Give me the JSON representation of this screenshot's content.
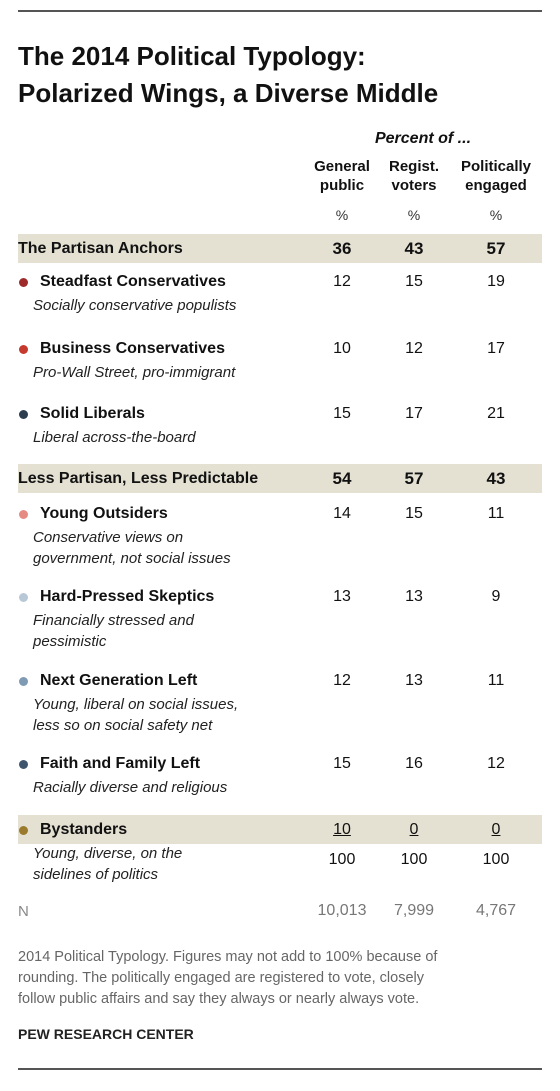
{
  "title_line1": "The 2014 Political Typology:",
  "title_line2": "Polarized Wings, a Diverse Middle",
  "header": {
    "percent_of": "Percent of ...",
    "columns": [
      {
        "line1": "General",
        "line2": "public",
        "unit": "%"
      },
      {
        "line1": "Regist.",
        "line2": "voters",
        "unit": "%"
      },
      {
        "line1": "Politically",
        "line2": "engaged",
        "unit": "%"
      }
    ]
  },
  "chart_data": {
    "type": "table",
    "columns": [
      "General public",
      "Regist. voters",
      "Politically engaged"
    ],
    "rows": [
      {
        "label": "The Partisan Anchors",
        "kind": "group",
        "values": [
          "36",
          "43",
          "57"
        ]
      },
      {
        "label": "Steadfast Conservatives",
        "kind": "item",
        "color": "#9e2a2a",
        "desc_lines": [
          "Socially conservative populists"
        ],
        "values": [
          "12",
          "15",
          "19"
        ]
      },
      {
        "label": "Business Conservatives",
        "kind": "item",
        "color": "#c6392e",
        "desc_lines": [
          "Pro-Wall Street, pro-immigrant"
        ],
        "values": [
          "10",
          "12",
          "17"
        ]
      },
      {
        "label": "Solid Liberals",
        "kind": "item",
        "color": "#2b3e50",
        "desc_lines": [
          "Liberal across-the-board"
        ],
        "values": [
          "15",
          "17",
          "21"
        ]
      },
      {
        "label": "Less Partisan, Less Predictable",
        "kind": "group",
        "values": [
          "54",
          "57",
          "43"
        ]
      },
      {
        "label": "Young Outsiders",
        "kind": "item",
        "color": "#e58b82",
        "desc_lines": [
          "Conservative views on",
          "government, not social issues"
        ],
        "values": [
          "14",
          "15",
          "11"
        ]
      },
      {
        "label": "Hard-Pressed Skeptics",
        "kind": "item",
        "color": "#b9c8d6",
        "desc_lines": [
          "Financially stressed and",
          "pessimistic"
        ],
        "values": [
          "13",
          "13",
          "9"
        ]
      },
      {
        "label": "Next Generation Left",
        "kind": "item",
        "color": "#7f9bb4",
        "desc_lines": [
          "Young, liberal on social issues,",
          "less so on social safety net"
        ],
        "values": [
          "12",
          "13",
          "11"
        ]
      },
      {
        "label": "Faith and Family Left",
        "kind": "item",
        "color": "#3d566e",
        "desc_lines": [
          "Racially diverse and religious"
        ],
        "values": [
          "15",
          "16",
          "12"
        ]
      },
      {
        "label": "Bystanders",
        "kind": "band-item",
        "color": "#9a7a2c",
        "desc_lines": [
          "Young, diverse, on the",
          "sidelines of politics"
        ],
        "values": [
          "10",
          "0",
          "0"
        ]
      }
    ],
    "totals": [
      "100",
      "100",
      "100"
    ],
    "n_label": "N",
    "n_values": [
      "10,013",
      "7,999",
      "4,767"
    ]
  },
  "note_lines": [
    "2014 Political Typology. Figures may not add to 100% because of",
    "rounding. The politically engaged are registered to vote, closely",
    "follow public affairs and say they always or nearly always vote."
  ],
  "source": "PEW RESEARCH CENTER"
}
